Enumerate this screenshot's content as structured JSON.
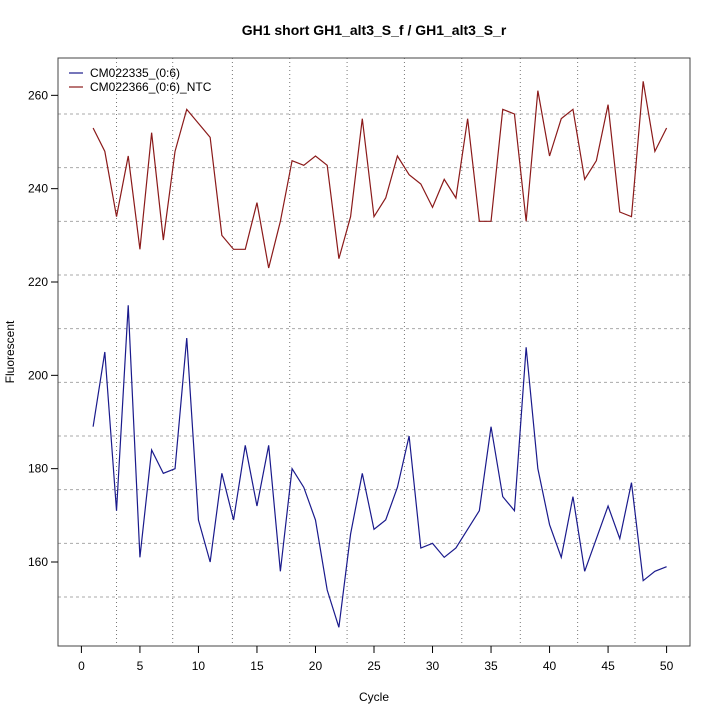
{
  "chart_data": {
    "type": "line",
    "title": "GH1 short GH1_alt3_S_f / GH1_alt3_S_r",
    "xlabel": "Cycle",
    "ylabel": "Fluorescent",
    "xlim": [
      -2,
      52
    ],
    "ylim": [
      142,
      268
    ],
    "xticks": [
      0,
      5,
      10,
      15,
      20,
      25,
      30,
      35,
      40,
      45,
      50
    ],
    "xtick_labels": [
      "0",
      "5",
      "10",
      "15",
      "20",
      "25",
      "30",
      "35",
      "40",
      "45",
      "50"
    ],
    "yticks": [
      160,
      180,
      200,
      220,
      240,
      260
    ],
    "ytick_labels": [
      "160",
      "180",
      "200",
      "220",
      "240",
      "260"
    ],
    "grid": true,
    "grid_x": [
      3,
      7.8,
      12.9,
      17.8,
      22.7,
      27.6,
      32.5,
      37.5,
      42.4,
      47.3
    ],
    "grid_y": [
      152.5,
      164,
      175.5,
      187,
      198.5,
      210,
      221.5,
      233,
      244.5,
      256
    ],
    "legend_position": "top-left",
    "x": [
      1,
      2,
      3,
      4,
      5,
      6,
      7,
      8,
      9,
      10,
      11,
      12,
      13,
      14,
      15,
      16,
      17,
      18,
      19,
      20,
      21,
      22,
      23,
      24,
      25,
      26,
      27,
      28,
      29,
      30,
      31,
      32,
      33,
      34,
      35,
      36,
      37,
      38,
      39,
      40,
      41,
      42,
      43,
      44,
      45,
      46,
      47,
      48,
      49,
      50
    ],
    "series": [
      {
        "name": "CM022335_(0:6)",
        "color": "#1a1a8c",
        "values": [
          189,
          205,
          171,
          215,
          161,
          184,
          179,
          180,
          208,
          169,
          160,
          179,
          169,
          185,
          172,
          185,
          158,
          180,
          176,
          169,
          154,
          146,
          166,
          179,
          167,
          169,
          176,
          187,
          163,
          164,
          161,
          163,
          167,
          171,
          189,
          174,
          171,
          206,
          180,
          168,
          161,
          174,
          158,
          165,
          172,
          165,
          177,
          156,
          158,
          159
        ]
      },
      {
        "name": "CM022366_(0:6)_NTC",
        "color": "#8b1a1a",
        "values": [
          253,
          248,
          234,
          247,
          227,
          252,
          229,
          248,
          257,
          254,
          251,
          230,
          227,
          227,
          237,
          223,
          233,
          246,
          245,
          247,
          245,
          225,
          234,
          255,
          234,
          238,
          247,
          243,
          241,
          236,
          242,
          238,
          255,
          233,
          233,
          257,
          256,
          233,
          261,
          247,
          255,
          257,
          242,
          246,
          258,
          235,
          234,
          263,
          248,
          253
        ]
      }
    ]
  }
}
